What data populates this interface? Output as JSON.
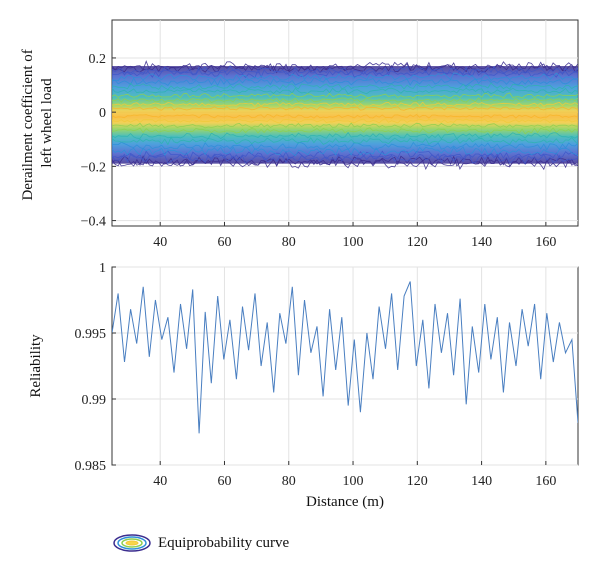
{
  "chart_data": [
    {
      "type": "line",
      "chart_style": "equiprobability contour band (density of many simulated curves)",
      "ylabel": "Derailment coefficient of left wheel load",
      "ylabel_lines": [
        "Derailment coefficient of",
        "left wheel load"
      ],
      "xlim": [
        25,
        170
      ],
      "ylim": [
        -0.42,
        0.34
      ],
      "xticks": [
        40,
        60,
        80,
        100,
        120,
        140,
        160
      ],
      "xtick_labels": [
        "40",
        "60",
        "80",
        "100",
        "120",
        "140",
        "160"
      ],
      "yticks": [
        -0.4,
        -0.2,
        0,
        0.2
      ],
      "ytick_labels": [
        "−0.4",
        "−0.2",
        "0",
        "0.2"
      ],
      "band_envelope": {
        "upper": 0.17,
        "lower": -0.19,
        "center": 0
      },
      "colormap": [
        "#3b2d8f",
        "#3f58c9",
        "#2e8fd8",
        "#2fb3b0",
        "#8fcf4f",
        "#f0c93a",
        "#f7b52a"
      ],
      "grid": true
    },
    {
      "type": "line",
      "xlabel": "Distance (m)",
      "ylabel": "Reliability",
      "xlim": [
        25,
        170
      ],
      "ylim": [
        0.985,
        1.0
      ],
      "xticks": [
        40,
        60,
        80,
        100,
        120,
        140,
        160
      ],
      "xtick_labels": [
        "40",
        "60",
        "80",
        "100",
        "120",
        "140",
        "160"
      ],
      "yticks": [
        0.985,
        0.99,
        0.995,
        1.0
      ],
      "ytick_labels": [
        "0.985",
        "0.99",
        "0.995",
        "1"
      ],
      "series_color": "#4a7fc1",
      "grid": true,
      "x": [
        25.0,
        26.9,
        28.9,
        30.8,
        32.7,
        34.7,
        36.6,
        38.5,
        40.5,
        42.4,
        44.3,
        46.3,
        48.2,
        50.1,
        52.1,
        54.0,
        55.9,
        57.9,
        59.8,
        61.7,
        63.7,
        65.6,
        67.5,
        69.5,
        71.4,
        73.3,
        75.3,
        77.2,
        79.1,
        81.1,
        83.0,
        84.9,
        86.9,
        88.8,
        90.7,
        92.7,
        94.6,
        96.5,
        98.5,
        100.4,
        102.3,
        104.3,
        106.2,
        108.1,
        110.1,
        112.0,
        113.9,
        115.9,
        117.8,
        119.7,
        121.7,
        123.6,
        125.5,
        127.5,
        129.4,
        131.3,
        133.3,
        135.2,
        137.1,
        139.1,
        141.0,
        142.9,
        144.9,
        146.8,
        148.7,
        150.7,
        152.6,
        154.5,
        156.5,
        158.4,
        160.3,
        162.3,
        164.2,
        166.1,
        168.1,
        170.0
      ],
      "values": [
        0.995,
        0.998,
        0.9928,
        0.9968,
        0.9942,
        0.9985,
        0.9932,
        0.9975,
        0.9945,
        0.9962,
        0.992,
        0.9972,
        0.9938,
        0.9983,
        0.9874,
        0.9966,
        0.9912,
        0.9978,
        0.993,
        0.996,
        0.9915,
        0.997,
        0.9937,
        0.998,
        0.9925,
        0.9958,
        0.9905,
        0.9965,
        0.9942,
        0.9985,
        0.9918,
        0.9975,
        0.9935,
        0.9955,
        0.9902,
        0.9968,
        0.9922,
        0.9962,
        0.9895,
        0.9945,
        0.989,
        0.995,
        0.9915,
        0.997,
        0.9938,
        0.998,
        0.9922,
        0.9978,
        0.9989,
        0.9925,
        0.996,
        0.9908,
        0.9972,
        0.9935,
        0.9965,
        0.9918,
        0.9976,
        0.9896,
        0.9955,
        0.992,
        0.9972,
        0.993,
        0.9962,
        0.9905,
        0.9958,
        0.9925,
        0.9968,
        0.994,
        0.9972,
        0.9915,
        0.9965,
        0.9928,
        0.9958,
        0.9935,
        0.9945,
        0.9882
      ]
    }
  ],
  "legend": {
    "label": "Equiprobability curve"
  }
}
